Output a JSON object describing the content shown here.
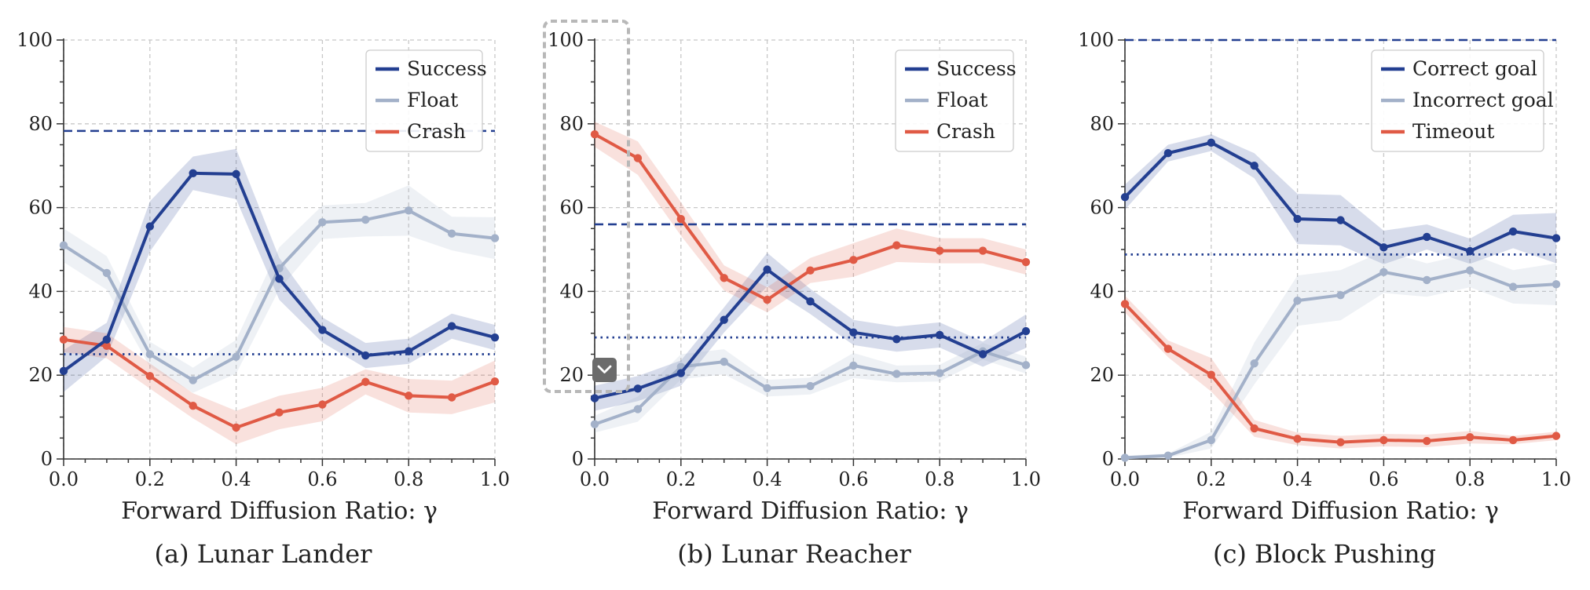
{
  "figure": {
    "captions": [
      "(a) Lunar Lander",
      "(b) Lunar Reacher",
      "(c) Block Pushing"
    ]
  },
  "colors": {
    "dark_blue": "#233f91",
    "light_blue": "#a3b1c9",
    "red": "#e05a45",
    "grid": "#c8c8c8",
    "selection": "#b8b8b8",
    "button": "#6b6b6b"
  },
  "overlay": {
    "icon": "chevron-down-icon"
  },
  "chart_data": [
    {
      "type": "line",
      "caption": "(a) Lunar Lander",
      "xlabel": "Forward Diffusion Ratio: γ",
      "ylabel": "",
      "xlim": [
        0.0,
        1.0
      ],
      "ylim": [
        0,
        100
      ],
      "x_ticks": [
        "0.0",
        "0.2",
        "0.4",
        "0.6",
        "0.8",
        "1.0"
      ],
      "y_ticks": [
        "0",
        "20",
        "40",
        "60",
        "80",
        "100"
      ],
      "grid": true,
      "legend_position": "top-right",
      "x": [
        0.0,
        0.1,
        0.2,
        0.3,
        0.4,
        0.5,
        0.6,
        0.7,
        0.8,
        0.9,
        1.0
      ],
      "series": [
        {
          "name": "Success",
          "color": "#233f91",
          "values": [
            21,
            28.5,
            55.5,
            68.2,
            68,
            43,
            30.8,
            24.7,
            25.7,
            31.7,
            29
          ],
          "band": [
            5,
            4,
            6,
            4,
            6,
            5,
            3,
            3,
            3,
            3,
            3
          ]
        },
        {
          "name": "Float",
          "color": "#a3b1c9",
          "values": [
            51,
            44.4,
            25,
            18.8,
            24.4,
            45.5,
            56.5,
            57.1,
            59.3,
            53.8,
            52.7
          ],
          "band": [
            4,
            4,
            3,
            3,
            4,
            5,
            4,
            4,
            6,
            4,
            5
          ]
        },
        {
          "name": "Crash",
          "color": "#e05a45",
          "values": [
            28.5,
            27,
            19.8,
            12.7,
            7.5,
            11.1,
            13,
            18.4,
            15.1,
            14.7,
            18.5
          ],
          "band": [
            3,
            3,
            3,
            3,
            4,
            4,
            4,
            3,
            4,
            4,
            5
          ]
        }
      ],
      "hlines": [
        {
          "y": 78.3,
          "style": "dashed",
          "color": "#233f91"
        },
        {
          "y": 25,
          "style": "dotted",
          "color": "#233f91"
        }
      ]
    },
    {
      "type": "line",
      "caption": "(b) Lunar Reacher",
      "xlabel": "Forward Diffusion Ratio: γ",
      "ylabel": "",
      "xlim": [
        0.0,
        1.0
      ],
      "ylim": [
        0,
        100
      ],
      "x_ticks": [
        "0.0",
        "0.2",
        "0.4",
        "0.6",
        "0.8",
        "1.0"
      ],
      "y_ticks": [
        "0",
        "20",
        "40",
        "60",
        "80",
        "100"
      ],
      "grid": true,
      "legend_position": "top-right",
      "x": [
        0.0,
        0.1,
        0.2,
        0.3,
        0.4,
        0.5,
        0.6,
        0.7,
        0.8,
        0.9,
        1.0
      ],
      "series": [
        {
          "name": "Success",
          "color": "#233f91",
          "values": [
            14.5,
            16.8,
            20.5,
            33.2,
            45.2,
            37.6,
            30.2,
            28.6,
            29.6,
            25,
            30.5
          ],
          "band": [
            3,
            3,
            3,
            3,
            4,
            3,
            3,
            3,
            3,
            3,
            4
          ]
        },
        {
          "name": "Float",
          "color": "#a3b1c9",
          "values": [
            8.3,
            11.9,
            22,
            23.2,
            16.9,
            17.4,
            22.3,
            20.3,
            20.5,
            25.7,
            22.4
          ],
          "band": [
            2,
            3,
            3,
            3,
            2,
            2,
            3,
            2,
            2,
            2,
            2
          ]
        },
        {
          "name": "Crash",
          "color": "#e05a45",
          "values": [
            77.5,
            71.8,
            57.3,
            43.2,
            38,
            45,
            47.5,
            51,
            49.7,
            49.7,
            47
          ],
          "band": [
            3,
            4,
            4,
            3,
            3,
            3,
            4,
            4,
            3,
            3,
            3
          ]
        }
      ],
      "hlines": [
        {
          "y": 56,
          "style": "dashed",
          "color": "#233f91"
        },
        {
          "y": 29,
          "style": "dotted",
          "color": "#233f91"
        }
      ]
    },
    {
      "type": "line",
      "caption": "(c) Block Pushing",
      "xlabel": "Forward Diffusion Ratio: γ",
      "ylabel": "",
      "xlim": [
        0.0,
        1.0
      ],
      "ylim": [
        0,
        100
      ],
      "x_ticks": [
        "0.0",
        "0.2",
        "0.4",
        "0.6",
        "0.8",
        "1.0"
      ],
      "y_ticks": [
        "0",
        "20",
        "40",
        "60",
        "80",
        "100"
      ],
      "grid": true,
      "legend_position": "top-right",
      "x": [
        0.0,
        0.1,
        0.2,
        0.3,
        0.4,
        0.5,
        0.6,
        0.7,
        0.8,
        0.9,
        1.0
      ],
      "series": [
        {
          "name": "Correct goal",
          "color": "#233f91",
          "values": [
            62.5,
            73,
            75.5,
            70,
            57.3,
            57,
            50.5,
            53,
            49.6,
            54.3,
            52.7
          ],
          "band": [
            3,
            2,
            2,
            3,
            6,
            6,
            4,
            3,
            3,
            4,
            6
          ]
        },
        {
          "name": "Incorrect goal",
          "color": "#a3b1c9",
          "values": [
            0.3,
            0.8,
            4.5,
            22.8,
            37.8,
            39.1,
            44.6,
            42.7,
            45,
            41.1,
            41.7
          ],
          "band": [
            0.5,
            0.5,
            2,
            5,
            6,
            6,
            5,
            4,
            4,
            4,
            5
          ]
        },
        {
          "name": "Timeout",
          "color": "#e05a45",
          "values": [
            37,
            26.3,
            20.1,
            7.3,
            4.8,
            4,
            4.5,
            4.3,
            5.2,
            4.5,
            5.5
          ],
          "band": [
            2,
            2,
            4,
            2,
            1.5,
            1.5,
            1.5,
            1.5,
            1.5,
            1,
            1
          ]
        }
      ],
      "hlines": [
        {
          "y": 100,
          "style": "dashed",
          "color": "#233f91"
        },
        {
          "y": 48.8,
          "style": "dotted",
          "color": "#233f91"
        }
      ]
    }
  ]
}
